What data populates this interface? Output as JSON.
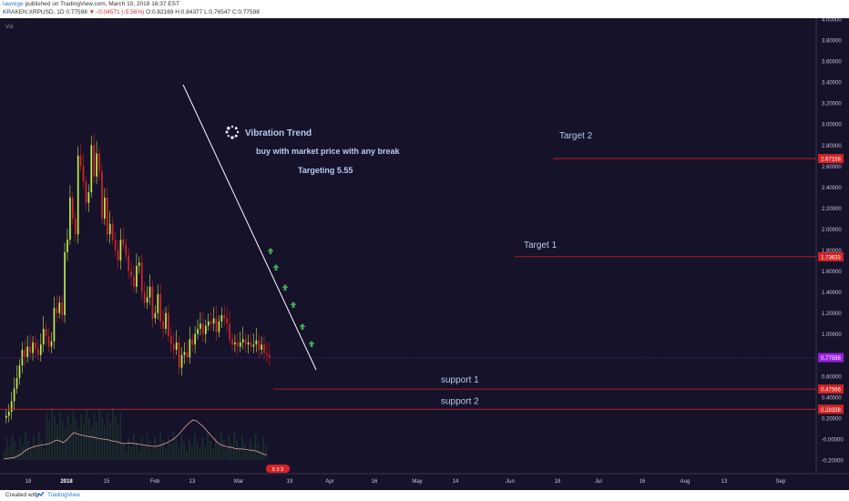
{
  "header": {
    "username": "lawrege",
    "published": "published on TradingView.com, March 10, 2018 16:37 EST",
    "symbol_line": "KRAKEN:XRPUSD, 1D 0.77598",
    "change": "▼ -0.04571 (-5.56%)",
    "ohlc": "O:0.82169 H:0.84377 L:0.76547 C:0.77598"
  },
  "footer": {
    "created_with": "Created with",
    "brand": "TradingView"
  },
  "colors": {
    "background": "#151229",
    "up_candle": "#c3ea4e",
    "down_candle": "#d32525",
    "level_line": "#d32525",
    "current_price": "#9a20e0",
    "trend_line": "#ffffff",
    "arrow": "#3fa55a",
    "annotation_text": "#b7cbf0",
    "volume_ma": "#e5a3a0"
  },
  "chart_data": {
    "type": "candlestick",
    "symbol": "KRAKEN:XRPUSD",
    "interval": "1D",
    "volume_label": "Vol",
    "x_ticks": [
      "18",
      "2018",
      "15",
      "Feb",
      "13",
      "Mar",
      "19",
      "Apr",
      "16",
      "May",
      "14",
      "Jun",
      "18",
      "Jul",
      "16",
      "Aug",
      "13",
      "Sep"
    ],
    "y_ticks": [
      "4.00000",
      "3.80000",
      "3.60000",
      "3.40000",
      "3.20000",
      "3.00000",
      "2.80000",
      "2.60000",
      "2.40000",
      "2.20000",
      "2.00000",
      "1.80000",
      "1.60000",
      "1.40000",
      "1.20000",
      "1.00000",
      "0.80000",
      "0.60000",
      "0.40000",
      "0.20000",
      "-0.00000",
      "-0.20000"
    ],
    "ylim": [
      -0.3,
      4.05
    ],
    "price_badges": [
      {
        "label": "2.67158",
        "value": 2.67158,
        "color": "#d32525"
      },
      {
        "label": "1.73633",
        "value": 1.73633,
        "color": "#d32525"
      },
      {
        "label": "0.77598",
        "value": 0.77598,
        "color": "#9a20e0"
      },
      {
        "label": "0.47566",
        "value": 0.47566,
        "color": "#d32525"
      },
      {
        "label": "0.28338",
        "value": 0.28338,
        "color": "#d32525"
      }
    ],
    "levels": [
      {
        "label": "Target 2",
        "value": 2.67158
      },
      {
        "label": "Target 1",
        "value": 1.73633
      },
      {
        "label": "support   1",
        "value": 0.47566
      },
      {
        "label": "support   2",
        "value": 0.28338
      }
    ],
    "current_price": 0.77598,
    "candles_close": [
      0.22,
      0.26,
      0.36,
      0.48,
      0.58,
      0.7,
      0.85,
      0.78,
      0.88,
      0.82,
      0.92,
      0.86,
      0.8,
      0.9,
      1.05,
      0.98,
      0.88,
      0.93,
      1.25,
      1.2,
      1.3,
      1.18,
      1.78,
      1.9,
      2.3,
      2.1,
      1.95,
      2.7,
      2.6,
      2.45,
      2.25,
      2.35,
      2.8,
      2.5,
      2.72,
      2.55,
      2.1,
      2.3,
      1.95,
      2.05,
      1.9,
      1.8,
      1.7,
      1.9,
      1.85,
      1.75,
      1.6,
      1.55,
      1.45,
      1.65,
      1.68,
      1.4,
      1.3,
      1.35,
      1.45,
      1.15,
      1.2,
      1.38,
      1.12,
      1.05,
      1.2,
      0.98,
      0.9,
      0.85,
      0.92,
      0.68,
      0.8,
      0.83,
      0.78,
      0.95,
      0.9,
      1.0,
      1.05,
      1.1,
      1.0,
      1.08,
      1.12,
      1.1,
      1.15,
      1.02,
      1.12,
      1.18,
      1.15,
      1.1,
      0.95,
      0.9,
      0.92,
      0.88,
      0.92,
      0.95,
      0.9,
      0.92,
      0.88,
      0.9,
      0.94,
      0.85,
      0.9,
      0.82,
      0.8,
      0.78
    ],
    "candles_open": 0.2,
    "volume_ma": [
      0.02,
      0.03,
      0.04,
      0.05,
      0.08,
      0.12,
      0.18,
      0.22,
      0.25,
      0.27,
      0.29,
      0.3,
      0.31,
      0.33,
      0.36,
      0.4,
      0.38,
      0.35,
      0.4,
      0.48,
      0.55,
      0.52,
      0.5,
      0.49,
      0.47,
      0.46,
      0.45,
      0.43,
      0.42,
      0.41,
      0.4,
      0.38,
      0.37,
      0.35,
      0.33,
      0.33,
      0.34,
      0.33,
      0.32,
      0.31,
      0.3,
      0.29,
      0.28,
      0.27,
      0.28,
      0.3,
      0.33,
      0.36,
      0.4,
      0.45,
      0.52,
      0.6,
      0.68,
      0.75,
      0.8,
      0.78,
      0.72,
      0.66,
      0.58,
      0.5,
      0.42,
      0.35,
      0.3,
      0.28,
      0.26,
      0.25,
      0.23,
      0.22,
      0.22,
      0.21,
      0.2,
      0.19,
      0.18,
      0.15,
      0.12,
      0.1
    ],
    "annotations": {
      "title": "Vibration Trend",
      "line1": "buy with market price with any break",
      "line2": "Targeting 5.55"
    },
    "arrows_count": 6,
    "time_badge": "5 3 3",
    "grid": false
  }
}
